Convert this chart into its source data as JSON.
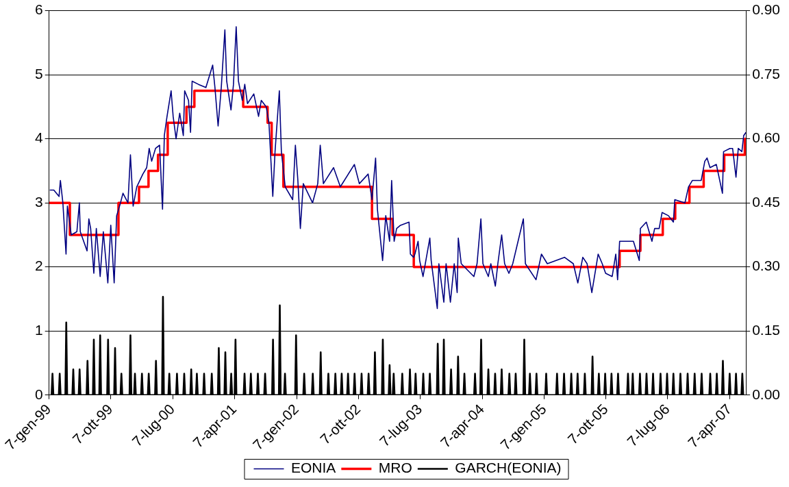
{
  "chart_data": {
    "type": "line",
    "legend": "bottom",
    "grid": "y",
    "marker": "none",
    "xlim": [
      "1999-01-07",
      "2007-06-18"
    ],
    "xticks": [
      {
        "value": "1999-01-07",
        "label": "7-gen-99"
      },
      {
        "value": "1999-10-07",
        "label": "7-ott-99"
      },
      {
        "value": "2000-07-07",
        "label": "7-lug-00"
      },
      {
        "value": "2001-04-07",
        "label": "7-apr-01"
      },
      {
        "value": "2002-01-07",
        "label": "7-gen-02"
      },
      {
        "value": "2002-10-07",
        "label": "7-ott-02"
      },
      {
        "value": "2003-07-07",
        "label": "7-lug-03"
      },
      {
        "value": "2004-04-07",
        "label": "7-apr-04"
      },
      {
        "value": "2005-01-07",
        "label": "7-gen-05"
      },
      {
        "value": "2005-10-07",
        "label": "7-ott-05"
      },
      {
        "value": "2006-07-07",
        "label": "7-lug-06"
      },
      {
        "value": "2007-04-07",
        "label": "7-apr-07"
      }
    ],
    "ylim": [
      0,
      6
    ],
    "yticks": [
      0,
      1,
      2,
      3,
      4,
      5,
      6
    ],
    "y2lim": [
      0,
      0.9
    ],
    "y2ticks": [
      {
        "value": 0,
        "label": "0.00"
      },
      {
        "value": 0.15,
        "label": "0.15"
      },
      {
        "value": 0.3,
        "label": "0.30"
      },
      {
        "value": 0.45,
        "label": "0.45"
      },
      {
        "value": 0.6,
        "label": "0.60"
      },
      {
        "value": 0.75,
        "label": "0.75"
      },
      {
        "value": 0.9,
        "label": "0.90"
      }
    ],
    "series": [
      {
        "name": "EONIA",
        "type": "line",
        "color": "#000080",
        "x": [
          "1999-01-10",
          "1999-01-28",
          "1999-02-20",
          "1999-02-26",
          "1999-03-09",
          "1999-03-23",
          "1999-03-29",
          "1999-04-15",
          "1999-05-10",
          "1999-05-21",
          "1999-05-25",
          "1999-06-24",
          "1999-07-02",
          "1999-07-10",
          "1999-07-24",
          "1999-08-04",
          "1999-08-21",
          "1999-09-04",
          "1999-09-24",
          "1999-10-07",
          "1999-10-22",
          "1999-11-02",
          "1999-11-19",
          "1999-11-30",
          "1999-12-22",
          "2000-01-02",
          "2000-01-14",
          "2000-01-30",
          "2000-02-26",
          "2000-03-14",
          "2000-03-25",
          "2000-04-05",
          "2000-04-22",
          "2000-05-10",
          "2000-05-23",
          "2000-05-31",
          "2000-06-12",
          "2000-06-30",
          "2000-07-09",
          "2000-07-22",
          "2000-08-07",
          "2000-08-23",
          "2000-08-29",
          "2000-09-15",
          "2000-09-24",
          "2000-10-01",
          "2000-10-29",
          "2000-12-01",
          "2000-12-31",
          "2001-01-10",
          "2001-01-24",
          "2001-02-07",
          "2001-02-23",
          "2001-03-03",
          "2001-03-22",
          "2001-04-02",
          "2001-04-14",
          "2001-04-24",
          "2001-05-11",
          "2001-05-22",
          "2001-06-03",
          "2001-07-01",
          "2001-07-22",
          "2001-08-03",
          "2001-08-25",
          "2001-09-06",
          "2001-09-23",
          "2001-10-03",
          "2001-10-22",
          "2001-10-31",
          "2001-11-17",
          "2001-12-20",
          "2002-01-01",
          "2002-01-12",
          "2002-01-23",
          "2002-02-05",
          "2002-03-18",
          "2002-04-10",
          "2002-04-21",
          "2002-05-05",
          "2002-06-19",
          "2002-07-19",
          "2002-09-19",
          "2002-10-11",
          "2002-11-19",
          "2002-12-06",
          "2002-12-22",
          "2002-12-30",
          "2003-01-22",
          "2003-02-05",
          "2003-02-22",
          "2003-03-03",
          "2003-03-14",
          "2003-03-25",
          "2003-04-11",
          "2003-05-19",
          "2003-05-25",
          "2003-06-08",
          "2003-06-14",
          "2003-06-28",
          "2003-07-05",
          "2003-07-20",
          "2003-08-19",
          "2003-08-25",
          "2003-09-21",
          "2003-09-28",
          "2003-10-20",
          "2003-10-30",
          "2003-11-18",
          "2003-12-05",
          "2003-12-18",
          "2003-12-23",
          "2004-01-05",
          "2004-03-01",
          "2004-03-15",
          "2004-04-01",
          "2004-04-10",
          "2004-05-04",
          "2004-05-15",
          "2004-06-04",
          "2004-06-15",
          "2004-07-02",
          "2004-07-15",
          "2004-08-03",
          "2004-08-20",
          "2004-10-06",
          "2004-10-15",
          "2004-12-01",
          "2004-12-25",
          "2005-01-20",
          "2005-04-06",
          "2005-05-15",
          "2005-06-04",
          "2005-06-26",
          "2005-07-15",
          "2005-08-05",
          "2005-09-02",
          "2005-09-20",
          "2005-10-05",
          "2005-11-03",
          "2005-11-19",
          "2005-11-27",
          "2005-12-06",
          "2006-01-10",
          "2006-02-05",
          "2006-03-03",
          "2006-03-08",
          "2006-04-03",
          "2006-04-28",
          "2006-05-10",
          "2006-05-30",
          "2006-06-12",
          "2006-07-10",
          "2006-08-01",
          "2006-08-07",
          "2006-09-21",
          "2006-10-07",
          "2006-10-24",
          "2006-12-02",
          "2006-12-18",
          "2006-12-28",
          "2007-01-10",
          "2007-02-07",
          "2007-03-06",
          "2007-03-11",
          "2007-04-08",
          "2007-04-20",
          "2007-05-05",
          "2007-05-15",
          "2007-05-31",
          "2007-06-08",
          "2007-06-18"
        ],
        "values": [
          3.2,
          3.2,
          3.1,
          3.35,
          3.0,
          2.2,
          2.95,
          2.5,
          2.55,
          3.0,
          2.55,
          2.25,
          2.75,
          2.6,
          1.9,
          2.6,
          1.85,
          2.55,
          1.75,
          2.65,
          1.75,
          2.8,
          3.0,
          3.15,
          3.0,
          3.75,
          2.95,
          3.25,
          3.45,
          3.55,
          3.85,
          3.65,
          3.85,
          3.9,
          2.9,
          4.05,
          4.35,
          4.75,
          4.35,
          4.0,
          4.4,
          4.05,
          4.75,
          4.6,
          4.1,
          4.9,
          4.85,
          4.8,
          5.15,
          4.8,
          4.2,
          4.8,
          5.7,
          4.9,
          4.45,
          4.85,
          5.75,
          4.9,
          4.6,
          4.85,
          4.55,
          4.7,
          4.35,
          4.6,
          4.5,
          4.25,
          3.1,
          3.8,
          4.75,
          3.8,
          3.25,
          3.05,
          3.9,
          3.35,
          2.6,
          3.3,
          3.0,
          3.3,
          3.9,
          3.3,
          3.55,
          3.25,
          3.6,
          3.3,
          3.45,
          3.05,
          3.7,
          2.9,
          2.1,
          2.8,
          2.4,
          3.35,
          2.4,
          2.6,
          2.65,
          2.7,
          2.2,
          2.15,
          2.2,
          2.4,
          2.1,
          1.85,
          2.45,
          2.1,
          1.35,
          2.05,
          1.45,
          2.05,
          1.45,
          2.05,
          1.6,
          2.45,
          2.05,
          1.85,
          2.05,
          2.75,
          2.05,
          1.85,
          2.05,
          1.7,
          2.05,
          2.5,
          2.05,
          1.9,
          2.05,
          2.75,
          2.05,
          1.8,
          2.2,
          2.05,
          2.15,
          2.05,
          1.75,
          2.15,
          2.05,
          1.6,
          2.2,
          2.05,
          1.9,
          1.85,
          2.2,
          1.8,
          2.4,
          2.4,
          2.4,
          2.1,
          2.6,
          2.7,
          2.4,
          2.6,
          2.6,
          2.85,
          2.8,
          2.7,
          3.05,
          3.0,
          3.25,
          3.35,
          3.35,
          3.65,
          3.7,
          3.55,
          3.6,
          3.15,
          3.8,
          3.85,
          3.85,
          3.4,
          3.85,
          3.8,
          4.05,
          4.1
        ]
      },
      {
        "name": "MRO",
        "type": "step",
        "color": "#ff0000",
        "x": [
          "1999-01-07",
          "1999-04-09",
          "1999-11-10",
          "2000-02-09",
          "2000-03-22",
          "2000-05-03",
          "2000-06-15",
          "2000-09-06",
          "2000-10-11",
          "2001-05-15",
          "2001-08-31",
          "2001-09-18",
          "2001-11-09",
          "2002-12-06",
          "2003-03-07",
          "2003-06-09",
          "2005-12-06",
          "2006-03-08",
          "2006-06-15",
          "2006-08-09",
          "2006-10-11",
          "2006-12-13",
          "2007-03-14",
          "2007-06-13",
          "2007-06-18"
        ],
        "values": [
          3.0,
          2.5,
          3.0,
          3.25,
          3.5,
          3.75,
          4.25,
          4.5,
          4.75,
          4.5,
          4.25,
          3.75,
          3.25,
          2.75,
          2.5,
          2.0,
          2.25,
          2.5,
          2.75,
          3.0,
          3.25,
          3.5,
          3.75,
          4.0,
          4.0
        ]
      },
      {
        "name": "GARCH(EONIA)",
        "type": "line",
        "axis": "y2",
        "color": "#000000",
        "x": [
          "1999-01-18",
          "1999-01-22",
          "1999-01-26",
          "1999-02-19",
          "1999-02-23",
          "1999-02-27",
          "1999-03-20",
          "1999-03-24",
          "1999-03-28",
          "1999-04-20",
          "1999-04-24",
          "1999-04-28",
          "1999-05-18",
          "1999-05-22",
          "1999-05-26",
          "1999-06-22",
          "1999-06-26",
          "1999-06-30",
          "1999-07-20",
          "1999-07-24",
          "1999-07-28",
          "1999-08-17",
          "1999-08-21",
          "1999-08-25",
          "1999-09-21",
          "1999-09-25",
          "1999-09-29",
          "1999-10-22",
          "1999-10-26",
          "1999-10-30",
          "1999-11-19",
          "1999-11-23",
          "1999-11-27",
          "1999-12-29",
          "2000-01-02",
          "2000-01-06",
          "2000-01-18",
          "2000-01-22",
          "2000-01-26",
          "2000-02-18",
          "2000-02-22",
          "2000-02-26",
          "2000-03-19",
          "2000-03-23",
          "2000-03-27",
          "2000-04-20",
          "2000-04-24",
          "2000-04-28",
          "2000-05-21",
          "2000-05-25",
          "2000-05-29",
          "2000-06-18",
          "2000-06-22",
          "2000-06-26",
          "2000-07-22",
          "2000-07-26",
          "2000-07-30",
          "2000-08-23",
          "2000-08-27",
          "2000-08-31",
          "2000-09-23",
          "2000-09-27",
          "2000-10-01",
          "2000-10-18",
          "2000-10-22",
          "2000-10-26",
          "2000-11-19",
          "2000-11-23",
          "2000-11-27",
          "2000-12-23",
          "2000-12-27",
          "2000-12-31",
          "2001-01-23",
          "2001-01-27",
          "2001-01-31",
          "2001-02-21",
          "2001-02-25",
          "2001-03-01",
          "2001-03-19",
          "2001-03-23",
          "2001-03-27",
          "2001-04-07",
          "2001-04-11",
          "2001-04-15",
          "2001-05-17",
          "2001-05-21",
          "2001-05-25",
          "2001-06-14",
          "2001-06-18",
          "2001-06-22",
          "2001-07-15",
          "2001-07-19",
          "2001-07-23",
          "2001-08-16",
          "2001-08-20",
          "2001-08-24",
          "2001-09-20",
          "2001-09-24",
          "2001-09-28",
          "2001-10-20",
          "2001-10-24",
          "2001-10-28",
          "2001-11-12",
          "2001-11-16",
          "2001-11-20",
          "2001-12-31",
          "2002-01-04",
          "2002-01-08",
          "2002-02-05",
          "2002-02-09",
          "2002-02-13",
          "2002-03-15",
          "2002-03-19",
          "2002-03-23",
          "2002-04-19",
          "2002-04-23",
          "2002-04-27",
          "2002-05-23",
          "2002-05-27",
          "2002-05-31",
          "2002-06-23",
          "2002-06-27",
          "2002-07-01",
          "2002-07-21",
          "2002-07-25",
          "2002-07-29",
          "2002-08-18",
          "2002-08-22",
          "2002-08-26",
          "2002-09-16",
          "2002-09-20",
          "2002-09-24",
          "2002-10-17",
          "2002-10-21",
          "2002-10-25",
          "2002-11-17",
          "2002-11-21",
          "2002-11-25",
          "2002-12-15",
          "2002-12-19",
          "2002-12-23",
          "2003-01-19",
          "2003-01-23",
          "2003-01-27",
          "2003-02-18",
          "2003-02-22",
          "2003-02-26",
          "2003-03-08",
          "2003-03-12",
          "2003-03-16",
          "2003-04-15",
          "2003-04-19",
          "2003-04-23",
          "2003-05-19",
          "2003-05-23",
          "2003-05-27",
          "2003-06-13",
          "2003-06-17",
          "2003-06-21",
          "2003-07-17",
          "2003-07-21",
          "2003-07-25",
          "2003-08-15",
          "2003-08-19",
          "2003-08-23",
          "2003-09-19",
          "2003-09-23",
          "2003-09-27",
          "2003-10-16",
          "2003-10-20",
          "2003-10-24",
          "2003-11-17",
          "2003-11-21",
          "2003-11-25",
          "2003-12-18",
          "2003-12-22",
          "2003-12-26",
          "2004-01-15",
          "2004-01-19",
          "2004-01-23",
          "2004-03-02",
          "2004-03-06",
          "2004-03-10",
          "2004-03-29",
          "2004-04-02",
          "2004-04-06",
          "2004-04-30",
          "2004-05-04",
          "2004-05-08",
          "2004-05-30",
          "2004-06-03",
          "2004-06-07",
          "2004-06-28",
          "2004-07-02",
          "2004-07-06",
          "2004-08-01",
          "2004-08-05",
          "2004-08-09",
          "2004-08-29",
          "2004-09-02",
          "2004-09-06",
          "2004-10-06",
          "2004-10-10",
          "2004-10-14",
          "2004-10-31",
          "2004-11-04",
          "2004-11-08",
          "2004-11-29",
          "2004-12-03",
          "2004-12-07",
          "2005-01-11",
          "2005-01-15",
          "2005-01-19",
          "2005-02-28",
          "2005-03-04",
          "2005-03-08",
          "2005-03-31",
          "2005-04-04",
          "2005-04-08",
          "2005-05-02",
          "2005-05-06",
          "2005-05-10",
          "2005-05-30",
          "2005-06-03",
          "2005-06-07",
          "2005-07-01",
          "2005-07-05",
          "2005-07-09",
          "2005-08-04",
          "2005-08-08",
          "2005-08-12",
          "2005-09-01",
          "2005-09-05",
          "2005-09-09",
          "2005-09-29",
          "2005-10-03",
          "2005-10-07",
          "2005-10-27",
          "2005-10-31",
          "2005-11-04",
          "2005-11-25",
          "2005-11-29",
          "2005-12-03",
          "2006-01-08",
          "2006-01-12",
          "2006-01-16",
          "2006-01-29",
          "2006-02-02",
          "2006-02-06",
          "2006-03-02",
          "2006-03-06",
          "2006-03-10",
          "2006-03-31",
          "2006-04-04",
          "2006-04-08",
          "2006-04-29",
          "2006-05-03",
          "2006-05-07",
          "2006-06-01",
          "2006-06-05",
          "2006-06-09",
          "2006-06-30",
          "2006-07-04",
          "2006-07-08",
          "2006-07-28",
          "2006-08-01",
          "2006-08-05",
          "2006-08-28",
          "2006-09-01",
          "2006-09-05",
          "2006-09-29",
          "2006-10-03",
          "2006-10-07",
          "2006-10-30",
          "2006-11-03",
          "2006-11-07",
          "2006-11-30",
          "2006-12-04",
          "2006-12-08",
          "2007-01-07",
          "2007-01-11",
          "2007-01-15",
          "2007-02-05",
          "2007-02-09",
          "2007-02-13",
          "2007-03-04",
          "2007-03-08",
          "2007-03-12",
          "2007-04-03",
          "2007-04-07",
          "2007-04-11",
          "2007-05-01",
          "2007-05-05",
          "2007-05-09",
          "2007-05-29",
          "2007-06-02",
          "2007-06-06"
        ],
        "values": [
          0,
          0.05,
          0,
          0,
          0.05,
          0,
          0,
          0.17,
          0,
          0,
          0.06,
          0,
          0,
          0.06,
          0,
          0,
          0.08,
          0,
          0,
          0.13,
          0,
          0,
          0.14,
          0,
          0,
          0.13,
          0,
          0,
          0.11,
          0,
          0,
          0.05,
          0,
          0,
          0.14,
          0,
          0,
          0.05,
          0,
          0,
          0.05,
          0,
          0,
          0.05,
          0,
          0,
          0.08,
          0,
          0,
          0.23,
          0,
          0,
          0.05,
          0,
          0,
          0.05,
          0,
          0,
          0.05,
          0,
          0,
          0.06,
          0,
          0,
          0.05,
          0,
          0,
          0.05,
          0,
          0,
          0.05,
          0,
          0,
          0.11,
          0,
          0,
          0.1,
          0,
          0,
          0.05,
          0,
          0,
          0.13,
          0,
          0,
          0.05,
          0,
          0,
          0.05,
          0,
          0,
          0.05,
          0,
          0,
          0.05,
          0,
          0,
          0.13,
          0,
          0,
          0.21,
          0,
          0,
          0.05,
          0,
          0,
          0.14,
          0,
          0,
          0.05,
          0,
          0,
          0.05,
          0,
          0,
          0.1,
          0,
          0,
          0.05,
          0,
          0,
          0.05,
          0,
          0,
          0.05,
          0,
          0,
          0.05,
          0,
          0,
          0.05,
          0,
          0,
          0.05,
          0,
          0,
          0.05,
          0,
          0,
          0.1,
          0,
          0,
          0.13,
          0,
          0,
          0.07,
          0,
          0,
          0.05,
          0,
          0,
          0.05,
          0,
          0,
          0.06,
          0,
          0,
          0.05,
          0,
          0,
          0.05,
          0,
          0,
          0.05,
          0,
          0,
          0.12,
          0,
          0,
          0.13,
          0,
          0,
          0.06,
          0,
          0,
          0.09,
          0,
          0,
          0.05,
          0,
          0,
          0.05,
          0,
          0,
          0.13,
          0,
          0,
          0.06,
          0,
          0,
          0.05,
          0,
          0,
          0.06,
          0,
          0,
          0.05,
          0,
          0,
          0.05,
          0,
          0,
          0.13,
          0,
          0,
          0.05,
          0,
          0,
          0.05,
          0,
          0,
          0.05,
          0,
          0,
          0.05,
          0,
          0,
          0.05,
          0,
          0,
          0.05,
          0,
          0,
          0.05,
          0,
          0,
          0.05,
          0,
          0,
          0.09,
          0,
          0,
          0.05,
          0,
          0,
          0.05,
          0,
          0,
          0.05,
          0,
          0,
          0.05,
          0,
          0,
          0.05,
          0,
          0,
          0.05,
          0,
          0,
          0.05,
          0,
          0,
          0.05,
          0,
          0,
          0.05,
          0,
          0,
          0.05,
          0,
          0,
          0.05,
          0,
          0,
          0.05,
          0,
          0,
          0.05,
          0,
          0,
          0.05,
          0,
          0,
          0.05,
          0,
          0,
          0.05,
          0,
          0,
          0.05,
          0,
          0,
          0.05,
          0,
          0,
          0.08,
          0,
          0,
          0.05,
          0,
          0,
          0.05,
          0,
          0,
          0.05,
          0
        ]
      }
    ]
  }
}
